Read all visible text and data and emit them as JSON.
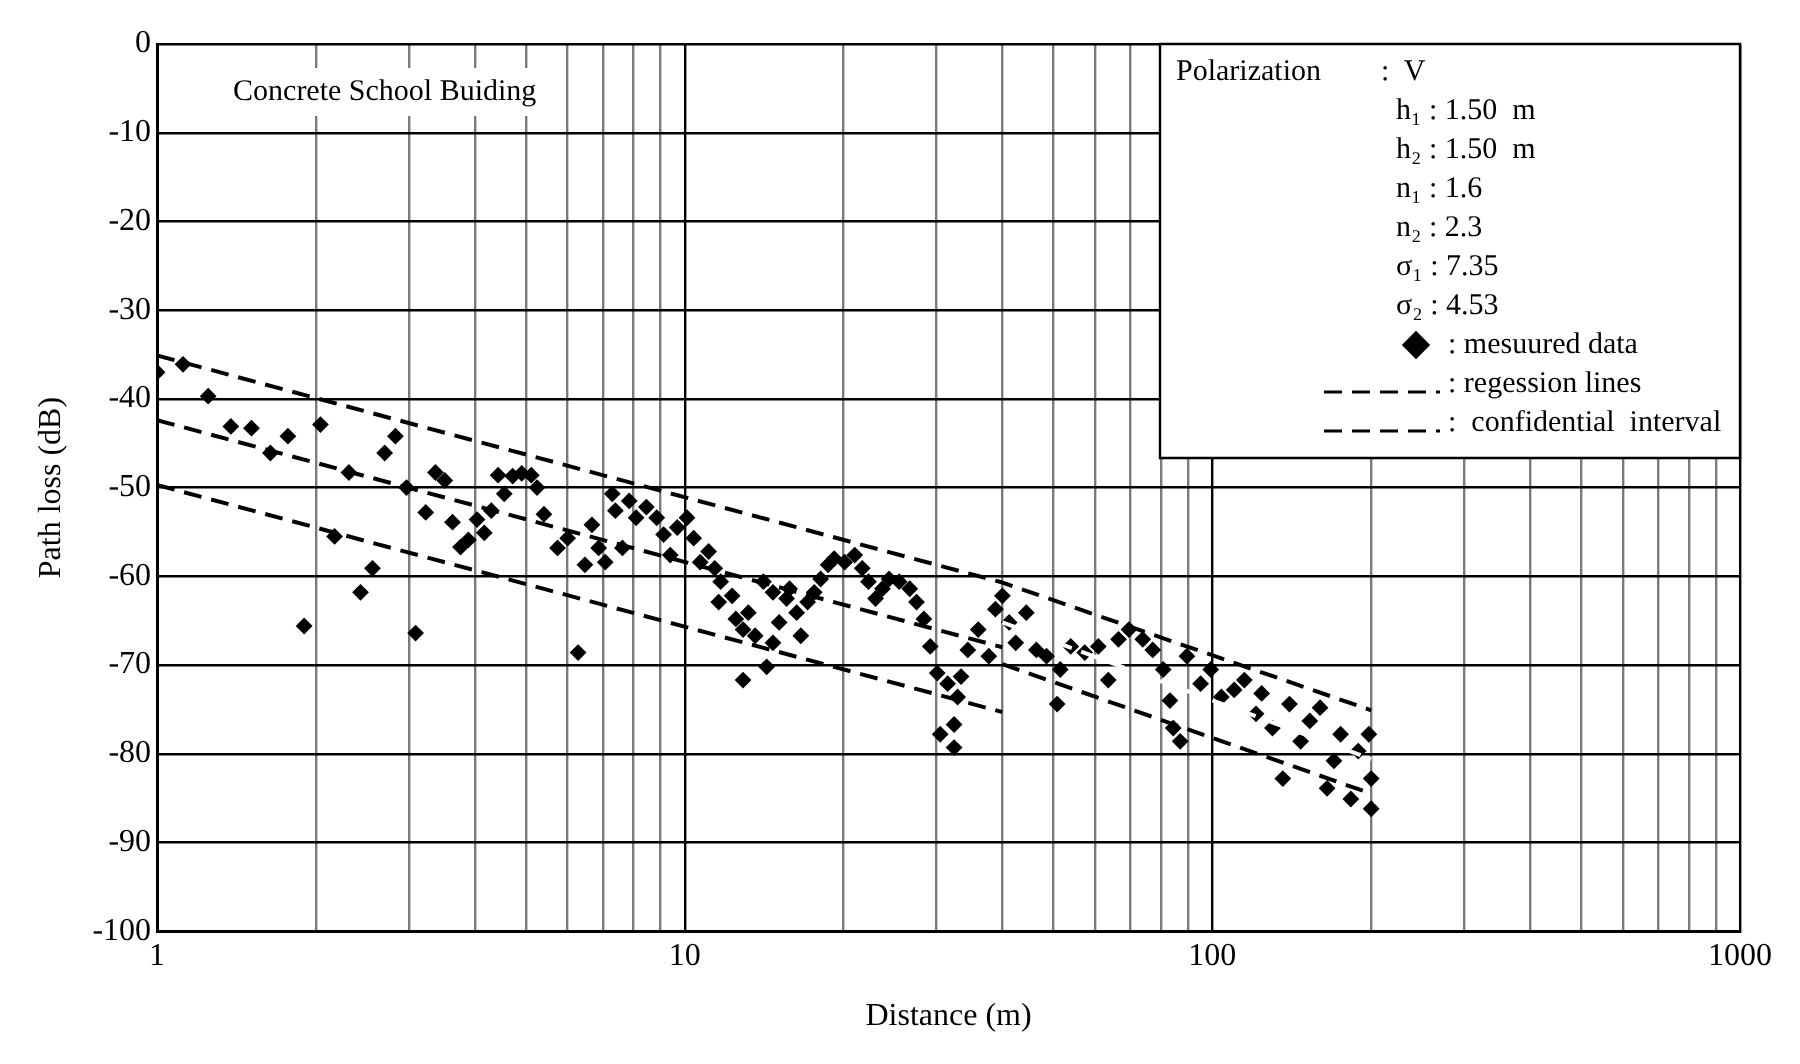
{
  "chart_data": {
    "type": "scatter",
    "xlabel": "Distance (m)",
    "ylabel": "Path loss (dB)",
    "log": "x",
    "grid": true,
    "legend": "top right",
    "xlim": [
      1,
      1000
    ],
    "xticks": [
      1,
      {
        "value": 2,
        "label": null
      },
      {
        "value": 3,
        "label": null
      },
      {
        "value": 4,
        "label": null
      },
      {
        "value": 5,
        "label": null
      },
      {
        "value": 6,
        "label": null
      },
      {
        "value": 7,
        "label": null
      },
      {
        "value": 8,
        "label": null
      },
      {
        "value": 9,
        "label": null
      },
      10,
      {
        "value": 20,
        "label": null
      },
      {
        "value": 30,
        "label": null
      },
      {
        "value": 40,
        "label": null
      },
      {
        "value": 50,
        "label": null
      },
      {
        "value": 60,
        "label": null
      },
      {
        "value": 70,
        "label": null
      },
      {
        "value": 80,
        "label": null
      },
      {
        "value": 90,
        "label": null
      },
      100,
      {
        "value": 200,
        "label": null
      },
      {
        "value": 300,
        "label": null
      },
      {
        "value": 400,
        "label": null
      },
      {
        "value": 500,
        "label": null
      },
      {
        "value": 600,
        "label": null
      },
      {
        "value": 700,
        "label": null
      },
      {
        "value": 800,
        "label": null
      },
      {
        "value": 900,
        "label": null
      },
      1000
    ],
    "ylim": [
      -100,
      0
    ],
    "yticks": [
      -100,
      -90,
      -80,
      -70,
      -60,
      -50,
      -40,
      -30,
      -20,
      -10,
      0
    ],
    "annotations": [
      "Concrete School Buiding",
      "Polarization        :  V",
      "h₁ : 1.50  m",
      "h₂ : 1.50  m",
      "n₁ : 1.6",
      "n₂ : 2.3",
      "σ₁ : 7.35",
      "σ₂ : 4.53"
    ],
    "series": [
      {
        "name": ": mesuured data",
        "color": "#000000",
        "marker": "diamond",
        "x": [
          1,
          1.12,
          1.25,
          1.38,
          1.51,
          1.64,
          1.77,
          1.9,
          2.04,
          2.17,
          2.31,
          2.43,
          2.56,
          2.7,
          2.83,
          2.97,
          3.09,
          3.23,
          3.37,
          3.51,
          3.63,
          3.76,
          3.89,
          4.04,
          4.17,
          4.3,
          4.43,
          4.55,
          4.72,
          4.91,
          5.12,
          5.25,
          5.41,
          5.74,
          6.0,
          6.28,
          6.47,
          6.67,
          6.87,
          7.07,
          7.29,
          7.39,
          7.62,
          7.85,
          8.09,
          8.46,
          8.85,
          9.12,
          9.39,
          9.68,
          10.1,
          10.4,
          10.7,
          11.1,
          11.4,
          11.7,
          11.6,
          12.3,
          12.5,
          12.9,
          12.9,
          13.2,
          13.6,
          14.3,
          14.1,
          14.7,
          15.1,
          14.7,
          15.6,
          15.8,
          16.3,
          16.6,
          17.1,
          17.6,
          18.1,
          18.7,
          19.2,
          20.1,
          21.0,
          21.7,
          22.3,
          23.0,
          23.7,
          24.4,
          25.5,
          26.7,
          27.5,
          28.4,
          29.2,
          30.1,
          30.5,
          31.5,
          32.4,
          32.9,
          33.4,
          32.4,
          34.4,
          36.0,
          37.7,
          38.8,
          40.0,
          41.2,
          42.4,
          44.4,
          46.4,
          48.5,
          50.8,
          51.5,
          53.9,
          57.3,
          60.8,
          63.5,
          66.4,
          69.5,
          73.8,
          77.1,
          80.7,
          84.3,
          83.1,
          86.9,
          89.5,
          95.0,
          99.3,
          104,
          110,
          115,
          121,
          124,
          130,
          136,
          140,
          147,
          153,
          160,
          165,
          170,
          175,
          183,
          189,
          198,
          200,
          200
        ],
        "values": [
          -37,
          -36.1,
          -39.7,
          -43.1,
          -43.3,
          -46.1,
          -44.2,
          -65.6,
          -42.9,
          -55.5,
          -48.3,
          -61.8,
          -59.1,
          -46.1,
          -44.2,
          -50,
          -66.4,
          -52.8,
          -48.3,
          -49.2,
          -53.9,
          -56.7,
          -55.9,
          -53.6,
          -55.1,
          -52.6,
          -48.6,
          -50.7,
          -48.7,
          -48.4,
          -48.6,
          -50.0,
          -53.0,
          -56.8,
          -55.7,
          -68.6,
          -58.7,
          -54.2,
          -56.8,
          -58.4,
          -50.7,
          -52.6,
          -56.8,
          -51.5,
          -53.4,
          -52.2,
          -53.4,
          -55.3,
          -57.6,
          -54.5,
          -53.4,
          -55.7,
          -58.4,
          -57.2,
          -59.1,
          -60.6,
          -62.9,
          -62.2,
          -64.8,
          -66.0,
          -71.7,
          -64.1,
          -66.7,
          -70.2,
          -60.6,
          -67.5,
          -65.2,
          -61.8,
          -62.5,
          -61.4,
          -64.1,
          -66.7,
          -62.9,
          -61.8,
          -60.3,
          -58.7,
          -58.0,
          -58.4,
          -57.6,
          -59.1,
          -60.6,
          -62.5,
          -61.4,
          -60.3,
          -60.6,
          -61.4,
          -62.9,
          -64.8,
          -67.9,
          -70.9,
          -77.8,
          -72.1,
          -79.3,
          -73.6,
          -71.3,
          -76.7,
          -68.3,
          -66.0,
          -69.0,
          -63.7,
          -62.2,
          -65.2,
          -67.5,
          -64.1,
          -68.3,
          -69.0,
          -74.4,
          -70.5,
          -67.9,
          -68.6,
          -67.9,
          -71.7,
          -67.1,
          -66.0,
          -67.1,
          -68.3,
          -70.5,
          -77.1,
          -74.0,
          -78.6,
          -69.0,
          -72.1,
          -70.5,
          -73.6,
          -72.8,
          -71.7,
          -75.5,
          -73.2,
          -77.1,
          -82.8,
          -74.4,
          -78.6,
          -76.3,
          -74.8,
          -83.9,
          -80.8,
          -77.8,
          -85.1,
          -79.7,
          -77.8,
          -86.2,
          -82.8
        ]
      },
      {
        "name": ": regession lines",
        "type": "line",
        "line_style": "dashed",
        "color": "#000000",
        "x": [
          1,
          40
        ],
        "values": [
          -42.4,
          -68.0
        ]
      },
      {
        "type": "line",
        "line_style": "dashed",
        "color": "#ffffff",
        "x": [
          40,
          200
        ],
        "values": [
          -65.2,
          -80.6
        ]
      },
      {
        "name": ":  confidential  interval",
        "type": "line",
        "line_style": "dashed",
        "color": "#000000",
        "x": [
          1,
          40,
          200
        ],
        "values": [
          -35.1,
          -60.7,
          -75.1
        ]
      },
      {
        "type": "line",
        "line_style": "dashed",
        "color": "#000000",
        "x": [
          1,
          40
        ],
        "values": [
          -49.7,
          -75.3
        ]
      },
      {
        "type": "line",
        "line_style": "dashed",
        "color": "#000000",
        "x": [
          40,
          200
        ],
        "values": [
          -69.9,
          -84.5
        ]
      }
    ]
  }
}
